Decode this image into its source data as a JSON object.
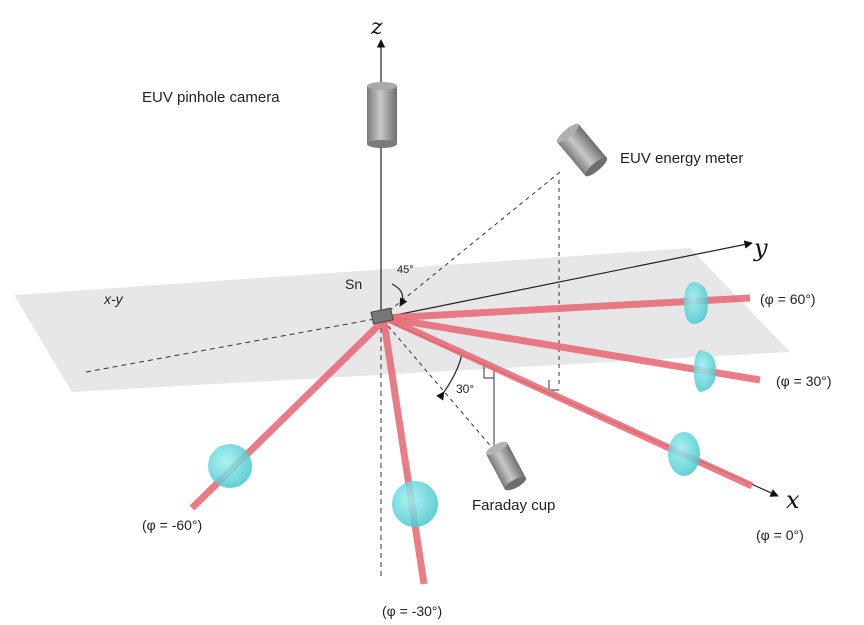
{
  "axes": {
    "z": "z",
    "y": "y",
    "x": "x"
  },
  "plane_label": "x-y",
  "target_label": "Sn",
  "devices": {
    "pinhole_camera": "EUV pinhole camera",
    "energy_meter": "EUV energy meter",
    "faraday_cup": "Faraday cup"
  },
  "angles": {
    "elevation": "45°",
    "azimuth": "30°"
  },
  "phi_labels": {
    "p60": "(φ = 60°)",
    "p30": "(φ = 30°)",
    "p0": "(φ = 0°)",
    "m60": "(φ = -60°)",
    "m30": "(φ = -30°)"
  },
  "colors": {
    "beam": "#e86e7a",
    "lens": "#5fd3d8",
    "plane": "#e2e2e2",
    "device": "#9a9a9a"
  }
}
